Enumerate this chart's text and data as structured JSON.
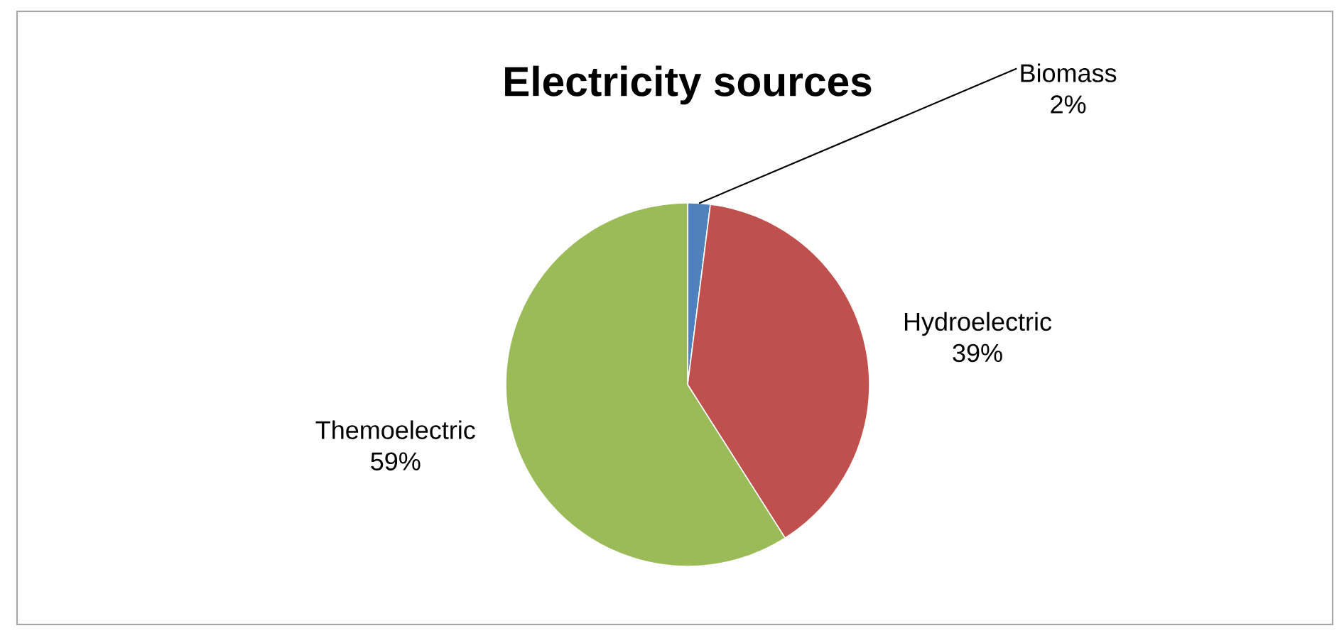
{
  "chart_data": {
    "type": "pie",
    "title": "Electricity sources",
    "categories": [
      "Biomass",
      "Hydroelectric",
      "Themoelectric"
    ],
    "values": [
      2,
      39,
      59
    ],
    "colors": [
      "#4f81bd",
      "#c0504d",
      "#9bbb59"
    ],
    "value_labels": [
      "2%",
      "39%",
      "59%"
    ]
  }
}
